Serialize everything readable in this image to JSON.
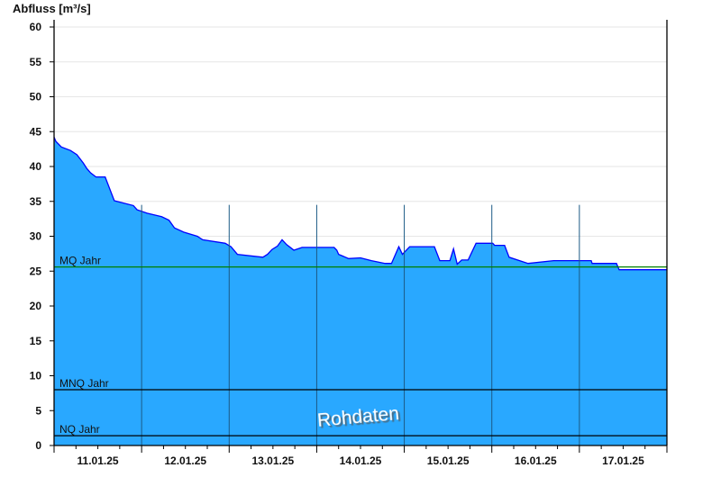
{
  "chart_data": {
    "type": "area",
    "title": "",
    "ylabel": "Abfluss [m³/s]",
    "xlabel": "",
    "ylim": [
      0,
      60
    ],
    "yticks": [
      0,
      5,
      10,
      15,
      20,
      25,
      30,
      35,
      40,
      45,
      50,
      55,
      60
    ],
    "xlim": [
      "2025-01-11 00:00",
      "2025-01-18 00:00"
    ],
    "xtick_labels": [
      "11.01.25",
      "12.01.25",
      "13.01.25",
      "14.01.25",
      "15.01.25",
      "16.01.25",
      "17.01.25"
    ],
    "grid": true,
    "fill_color": "#29a8ff",
    "line_color": "#0000ff",
    "watermark": "Rohdaten",
    "reference_lines": [
      {
        "label": "MQ Jahr",
        "value": 25.6,
        "color": "#008000"
      },
      {
        "label": "MNQ Jahr",
        "value": 8.0,
        "color": "#000000"
      },
      {
        "label": "NQ Jahr",
        "value": 1.4,
        "color": "#000000"
      }
    ],
    "series": [
      {
        "points": [
          [
            "2025-01-11 00:00",
            44.2
          ],
          [
            "2025-01-11 00:30",
            43.6
          ],
          [
            "2025-01-11 02:00",
            42.8
          ],
          [
            "2025-01-11 04:30",
            42.3
          ],
          [
            "2025-01-11 06:15",
            41.7
          ],
          [
            "2025-01-11 08:00",
            40.5
          ],
          [
            "2025-01-11 09:00",
            39.7
          ],
          [
            "2025-01-11 10:00",
            39.1
          ],
          [
            "2025-01-11 11:30",
            38.5
          ],
          [
            "2025-01-11 14:00",
            38.5
          ],
          [
            "2025-01-11 16:30",
            35.1
          ],
          [
            "2025-01-11 21:45",
            34.4
          ],
          [
            "2025-01-11 22:45",
            33.8
          ],
          [
            "2025-01-12 01:30",
            33.3
          ],
          [
            "2025-01-12 05:30",
            32.8
          ],
          [
            "2025-01-12 07:30",
            32.3
          ],
          [
            "2025-01-12 09:00",
            31.2
          ],
          [
            "2025-01-12 11:30",
            30.6
          ],
          [
            "2025-01-12 15:15",
            30.0
          ],
          [
            "2025-01-12 16:45",
            29.5
          ],
          [
            "2025-01-12 22:55",
            29.0
          ],
          [
            "2025-01-13 00:30",
            28.5
          ],
          [
            "2025-01-13 02:15",
            27.4
          ],
          [
            "2025-01-13 09:15",
            27.0
          ],
          [
            "2025-01-13 10:30",
            27.4
          ],
          [
            "2025-01-13 11:45",
            28.1
          ],
          [
            "2025-01-13 13:15",
            28.6
          ],
          [
            "2025-01-13 14:30",
            29.5
          ],
          [
            "2025-01-13 15:45",
            28.8
          ],
          [
            "2025-01-13 17:00",
            28.3
          ],
          [
            "2025-01-13 17:45",
            28.0
          ],
          [
            "2025-01-13 20:00",
            28.4
          ],
          [
            "2025-01-14 04:45",
            28.4
          ],
          [
            "2025-01-14 05:30",
            28.0
          ],
          [
            "2025-01-14 06:00",
            27.4
          ],
          [
            "2025-01-14 08:45",
            26.8
          ],
          [
            "2025-01-14 12:00",
            26.9
          ],
          [
            "2025-01-14 15:00",
            26.5
          ],
          [
            "2025-01-14 18:45",
            26.1
          ],
          [
            "2025-01-14 20:30",
            26.1
          ],
          [
            "2025-01-14 22:30",
            28.5
          ],
          [
            "2025-01-14 23:30",
            27.4
          ],
          [
            "2025-01-15 01:30",
            28.5
          ],
          [
            "2025-01-15 08:15",
            28.5
          ],
          [
            "2025-01-15 09:45",
            26.5
          ],
          [
            "2025-01-15 12:30",
            26.5
          ],
          [
            "2025-01-15 13:30",
            28.2
          ],
          [
            "2025-01-15 14:30",
            26.0
          ],
          [
            "2025-01-15 15:45",
            26.6
          ],
          [
            "2025-01-15 17:30",
            26.6
          ],
          [
            "2025-01-15 19:40",
            29.0
          ],
          [
            "2025-01-16 00:15",
            29.0
          ],
          [
            "2025-01-16 00:45",
            28.7
          ],
          [
            "2025-01-16 03:30",
            28.7
          ],
          [
            "2025-01-16 04:45",
            27.0
          ],
          [
            "2025-01-16 09:55",
            26.1
          ],
          [
            "2025-01-16 16:55",
            26.5
          ],
          [
            "2025-01-17 03:15",
            26.5
          ],
          [
            "2025-01-17 03:30",
            26.1
          ],
          [
            "2025-01-17 10:10",
            26.1
          ],
          [
            "2025-01-17 10:55",
            25.2
          ],
          [
            "2025-01-18 00:00",
            25.2
          ]
        ]
      }
    ]
  }
}
